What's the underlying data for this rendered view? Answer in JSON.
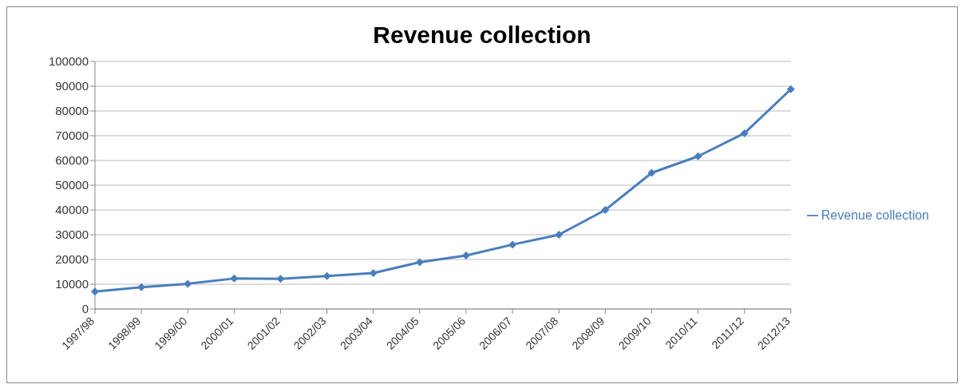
{
  "chart_data": {
    "type": "line",
    "title": "Revenue collection",
    "categories": [
      "1997/98",
      "1998/99",
      "1999/00",
      "2000/01",
      "2001/02",
      "2002/03",
      "2003/04",
      "2004/05",
      "2005/06",
      "2006/07",
      "2007/08",
      "2008/09",
      "2009/10",
      "2010/11",
      "2011/12",
      "2012/13"
    ],
    "series": [
      {
        "name": "Revenue collection",
        "color": "#4a7ebb",
        "values": [
          7000,
          8800,
          10200,
          12300,
          12200,
          13300,
          14500,
          18900,
          21600,
          26000,
          30000,
          40000,
          55000,
          61700,
          71000,
          88800
        ]
      }
    ],
    "ylim": [
      0,
      100000
    ],
    "yticks": [
      0,
      10000,
      20000,
      30000,
      40000,
      50000,
      60000,
      70000,
      80000,
      90000,
      100000
    ],
    "grid": "y",
    "legend": "right",
    "marker": "diamond",
    "line_style": "solid"
  }
}
